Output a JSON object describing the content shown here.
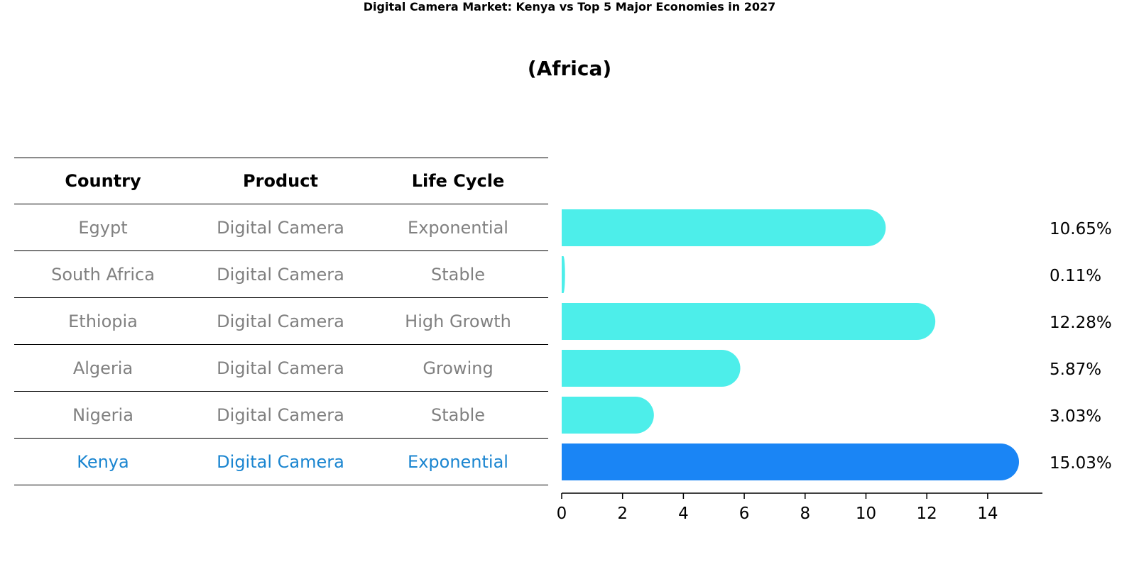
{
  "title": "Digital Camera Market: Kenya vs Top 5 Major Economies in 2027",
  "subtitle": "(Africa)",
  "table": {
    "headers": [
      "Country",
      "Product",
      "Life Cycle"
    ],
    "rows": [
      [
        "Egypt",
        "Digital Camera",
        "Exponential"
      ],
      [
        "South Africa",
        "Digital Camera",
        "Stable"
      ],
      [
        "Ethiopia",
        "Digital Camera",
        "High Growth"
      ],
      [
        "Algeria",
        "Digital Camera",
        "Growing"
      ],
      [
        "Nigeria",
        "Digital Camera",
        "Stable"
      ],
      [
        "Kenya",
        "Digital Camera",
        "Exponential"
      ]
    ],
    "highlight_row": 5
  },
  "colors": {
    "bar": "#4deeea",
    "highlight": "#1a85f5",
    "highlight_text": "#1a85d0",
    "muted_text": "#808080"
  },
  "chart_data": {
    "type": "bar",
    "orientation": "horizontal",
    "categories": [
      "Egypt",
      "South Africa",
      "Ethiopia",
      "Algeria",
      "Nigeria",
      "Kenya"
    ],
    "values": [
      10.65,
      0.11,
      12.28,
      5.87,
      3.03,
      15.03
    ],
    "value_labels": [
      "10.65%",
      "0.11%",
      "12.28%",
      "5.87%",
      "3.03%",
      "15.03%"
    ],
    "xticks": [
      0,
      2,
      4,
      6,
      8,
      10,
      12,
      14
    ],
    "xlim": [
      0,
      15.8
    ],
    "grid": false,
    "highlight": "Kenya"
  }
}
